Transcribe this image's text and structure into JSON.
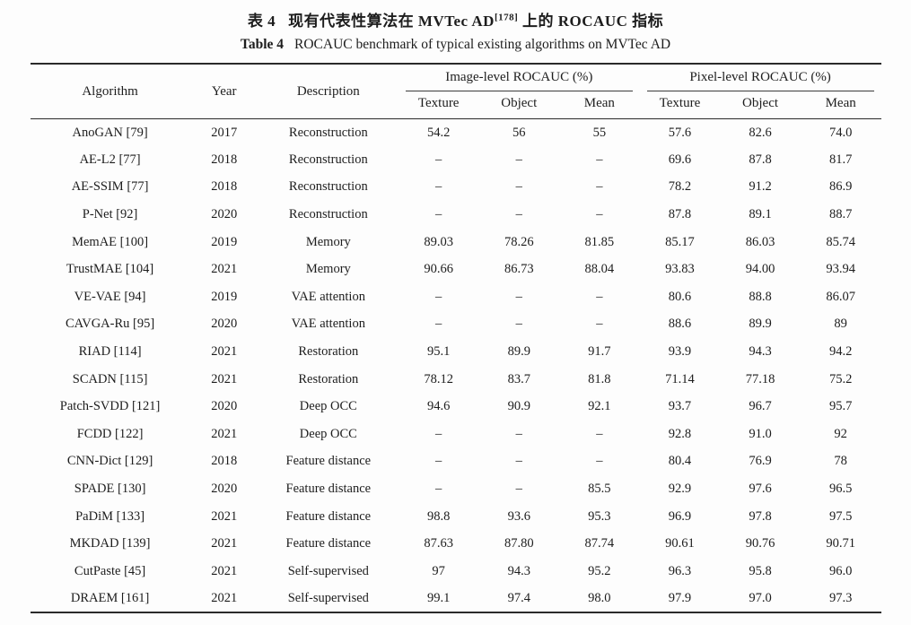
{
  "title": {
    "zh_prefix": "表 4",
    "zh_main": "现有代表性算法在 MVTec AD",
    "zh_sup": "[178]",
    "zh_suffix": "上的 ROCAUC 指标",
    "en_label": "Table 4",
    "en_text": "ROCAUC benchmark of typical existing algorithms on MVTec AD"
  },
  "table": {
    "columns": [
      "Algorithm",
      "Year",
      "Description"
    ],
    "group_headers": [
      "Image-level ROCAUC (%)",
      "Pixel-level ROCAUC (%)"
    ],
    "sub_headers": [
      "Texture",
      "Object",
      "Mean",
      "Texture",
      "Object",
      "Mean"
    ],
    "rows": [
      [
        "AnoGAN [79]",
        "2017",
        "Reconstruction",
        "54.2",
        "56",
        "55",
        "57.6",
        "82.6",
        "74.0"
      ],
      [
        "AE-L2 [77]",
        "2018",
        "Reconstruction",
        "–",
        "–",
        "–",
        "69.6",
        "87.8",
        "81.7"
      ],
      [
        "AE-SSIM [77]",
        "2018",
        "Reconstruction",
        "–",
        "–",
        "–",
        "78.2",
        "91.2",
        "86.9"
      ],
      [
        "P-Net [92]",
        "2020",
        "Reconstruction",
        "–",
        "–",
        "–",
        "87.8",
        "89.1",
        "88.7"
      ],
      [
        "MemAE [100]",
        "2019",
        "Memory",
        "89.03",
        "78.26",
        "81.85",
        "85.17",
        "86.03",
        "85.74"
      ],
      [
        "TrustMAE [104]",
        "2021",
        "Memory",
        "90.66",
        "86.73",
        "88.04",
        "93.83",
        "94.00",
        "93.94"
      ],
      [
        "VE-VAE [94]",
        "2019",
        "VAE attention",
        "–",
        "–",
        "–",
        "80.6",
        "88.8",
        "86.07"
      ],
      [
        "CAVGA-Ru [95]",
        "2020",
        "VAE attention",
        "–",
        "–",
        "–",
        "88.6",
        "89.9",
        "89"
      ],
      [
        "RIAD [114]",
        "2021",
        "Restoration",
        "95.1",
        "89.9",
        "91.7",
        "93.9",
        "94.3",
        "94.2"
      ],
      [
        "SCADN [115]",
        "2021",
        "Restoration",
        "78.12",
        "83.7",
        "81.8",
        "71.14",
        "77.18",
        "75.2"
      ],
      [
        "Patch-SVDD [121]",
        "2020",
        "Deep OCC",
        "94.6",
        "90.9",
        "92.1",
        "93.7",
        "96.7",
        "95.7"
      ],
      [
        "FCDD [122]",
        "2021",
        "Deep OCC",
        "–",
        "–",
        "–",
        "92.8",
        "91.0",
        "92"
      ],
      [
        "CNN-Dict [129]",
        "2018",
        "Feature distance",
        "–",
        "–",
        "–",
        "80.4",
        "76.9",
        "78"
      ],
      [
        "SPADE [130]",
        "2020",
        "Feature distance",
        "–",
        "–",
        "85.5",
        "92.9",
        "97.6",
        "96.5"
      ],
      [
        "PaDiM [133]",
        "2021",
        "Feature distance",
        "98.8",
        "93.6",
        "95.3",
        "96.9",
        "97.8",
        "97.5"
      ],
      [
        "MKDAD [139]",
        "2021",
        "Feature distance",
        "87.63",
        "87.80",
        "87.74",
        "90.61",
        "90.76",
        "90.71"
      ],
      [
        "CutPaste [45]",
        "2021",
        "Self-supervised",
        "97",
        "94.3",
        "95.2",
        "96.3",
        "95.8",
        "96.0"
      ],
      [
        "DRAEM [161]",
        "2021",
        "Self-supervised",
        "99.1",
        "97.4",
        "98.0",
        "97.9",
        "97.0",
        "97.3"
      ]
    ]
  }
}
